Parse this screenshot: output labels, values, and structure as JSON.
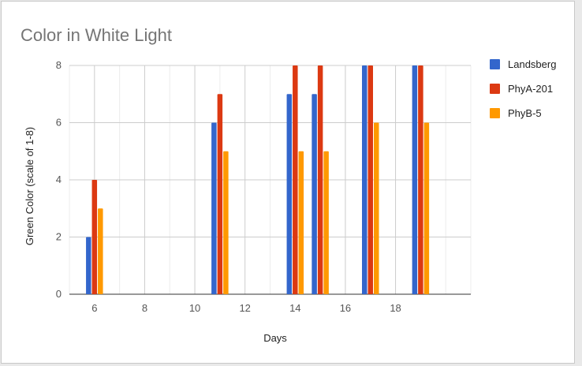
{
  "chart_data": {
    "type": "bar",
    "title": "Color in White Light",
    "xlabel": "Days",
    "ylabel": "Green Color (scale of 1-8)",
    "xlim": [
      5,
      21
    ],
    "ylim": [
      0,
      8
    ],
    "x_ticks": [
      6,
      8,
      10,
      12,
      14,
      16,
      18
    ],
    "y_ticks": [
      0,
      2,
      4,
      6,
      8
    ],
    "grid": true,
    "legend_position": "right",
    "x": [
      6,
      11,
      14,
      15,
      17,
      19
    ],
    "series": [
      {
        "name": "Landsberg",
        "color": "#3366cc",
        "values": [
          2,
          6,
          7,
          7,
          8,
          8
        ]
      },
      {
        "name": "PhyA-201",
        "color": "#dc3912",
        "values": [
          4,
          7,
          8,
          8,
          8,
          8
        ]
      },
      {
        "name": "PhyB-5",
        "color": "#ff9900",
        "values": [
          3,
          5,
          5,
          5,
          6,
          6
        ]
      }
    ]
  }
}
